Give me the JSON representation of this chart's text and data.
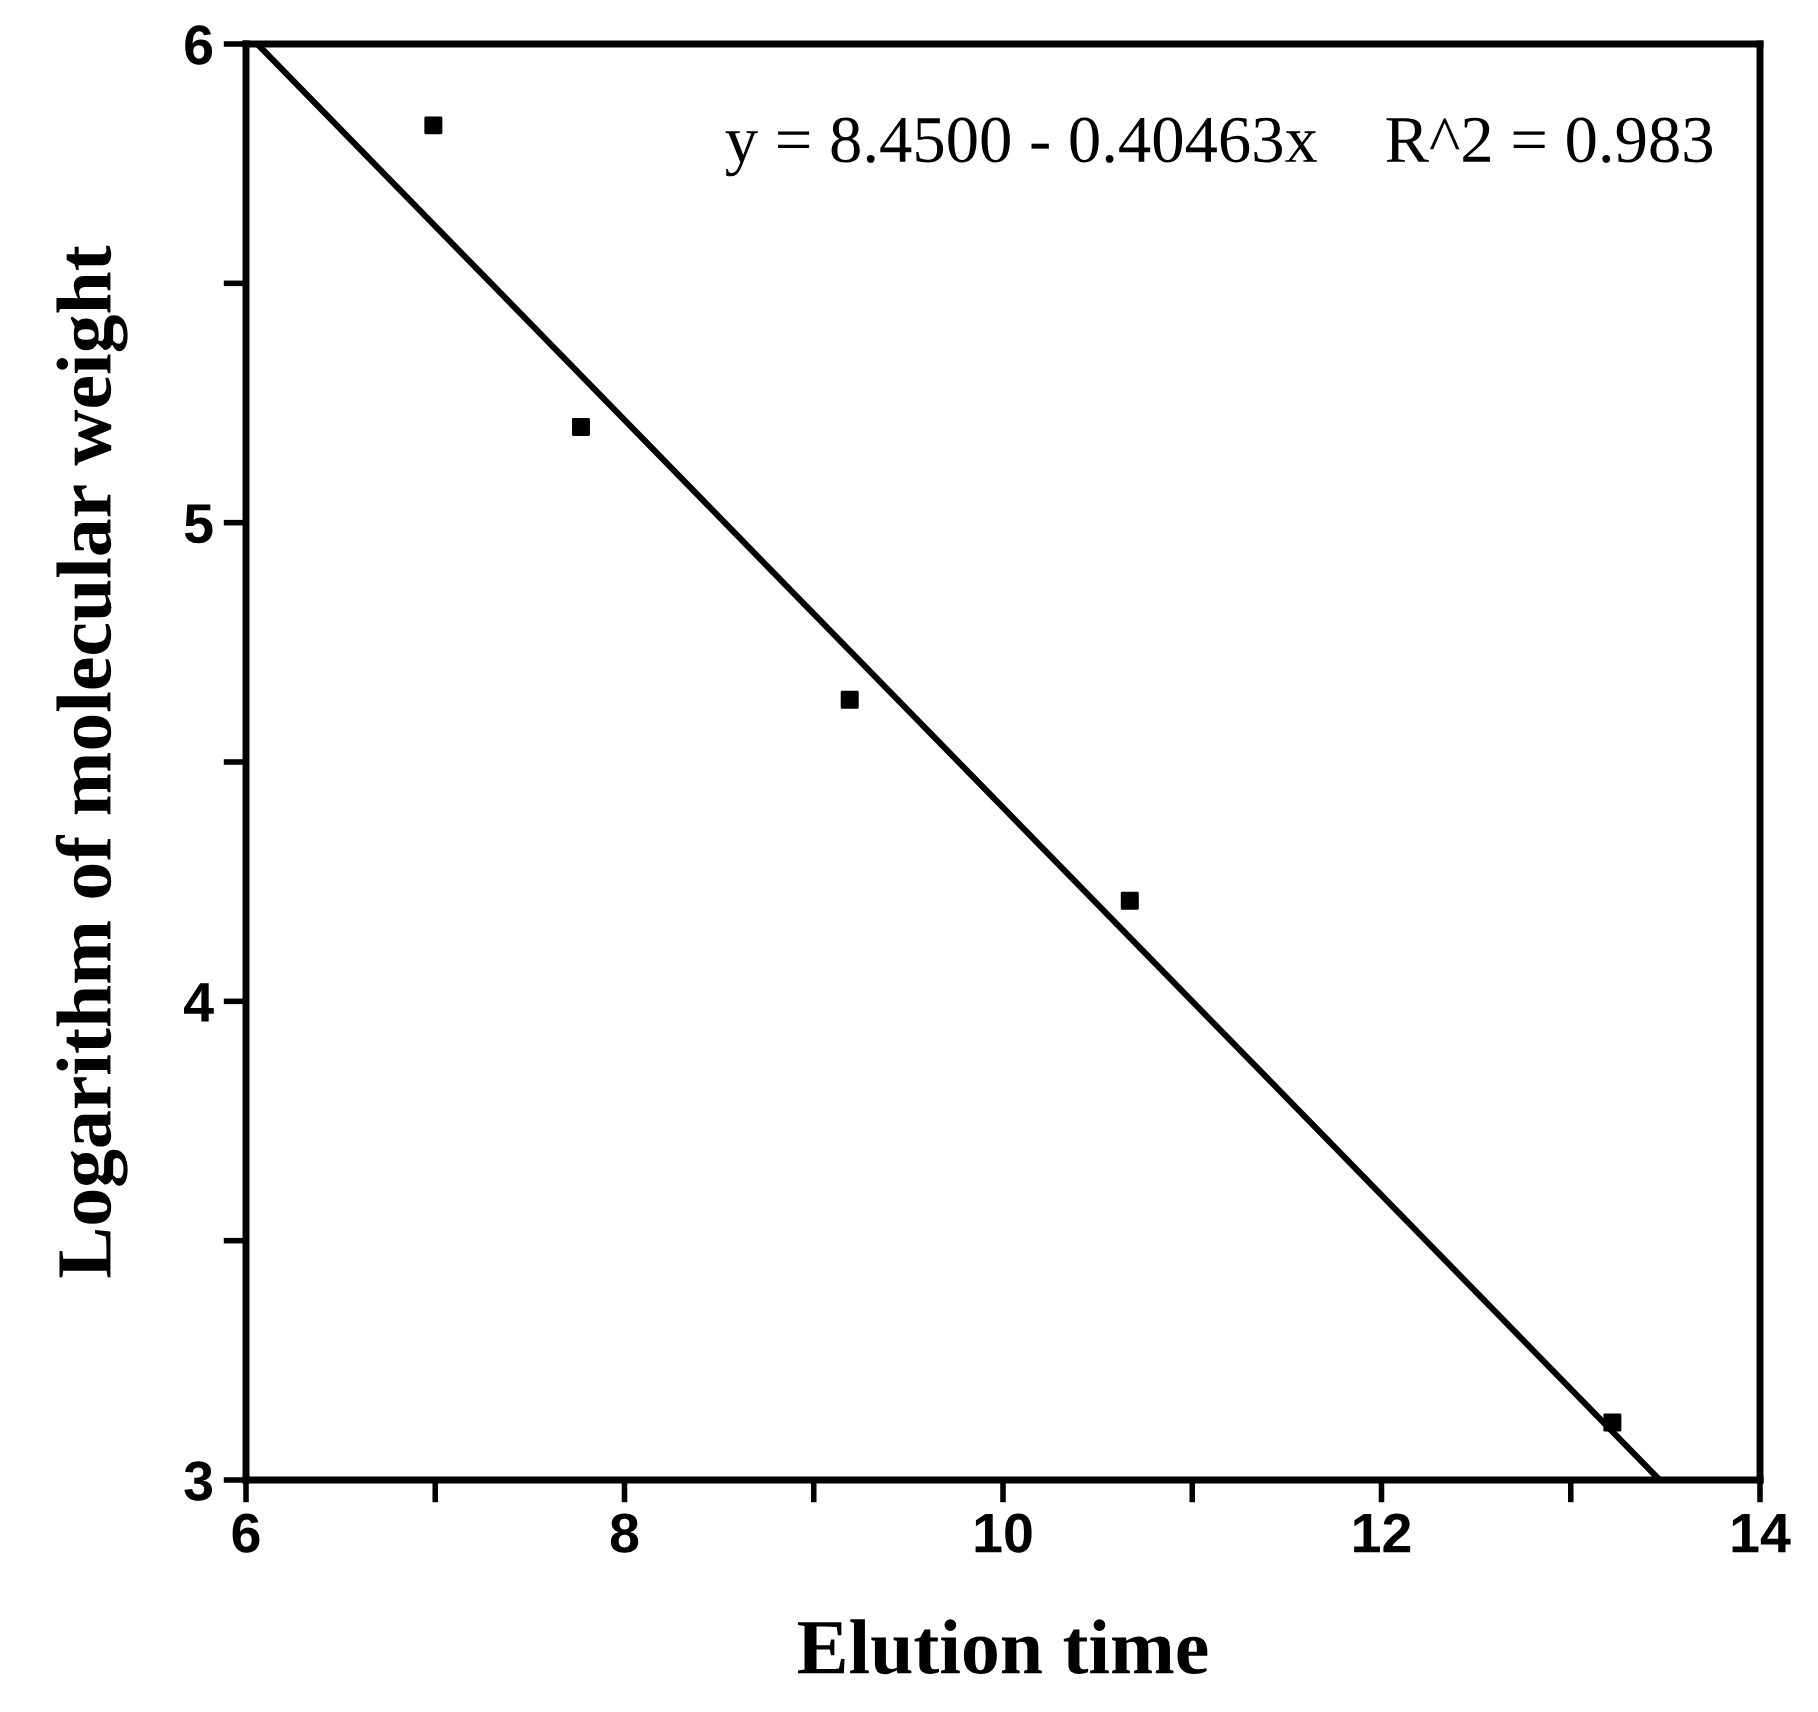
{
  "chart_data": {
    "type": "scatter",
    "xlabel": "Elution time",
    "ylabel": "Logarithm of molecular weight",
    "annotations": [
      "y = 8.4500 - 0.40463x    R^2 = 0.983"
    ],
    "series": [
      {
        "color": "#000000",
        "marker": "square",
        "x": [
          6.99,
          7.77,
          9.19,
          10.67,
          13.22
        ],
        "values": [
          5.83,
          5.2,
          4.63,
          4.21,
          3.12
        ]
      },
      {
        "type": "line",
        "color": "#000000",
        "marker": "none",
        "line_style": "solid",
        "x": [
          6.06,
          13.47
        ],
        "values": [
          6.0,
          3.0
        ]
      }
    ],
    "xlim": [
      6,
      14
    ],
    "ylim": [
      3,
      6
    ],
    "xticks": [
      6,
      {
        "value": 7,
        "label": null
      },
      8,
      {
        "value": 9,
        "label": null
      },
      10,
      {
        "value": 11,
        "label": null
      },
      12,
      {
        "value": 13,
        "label": null
      },
      14
    ],
    "yticks": [
      3,
      {
        "value": 3.5,
        "label": null
      },
      4,
      {
        "value": 4.5,
        "label": null
      },
      5,
      {
        "value": 5.5,
        "label": null
      },
      6
    ],
    "grid": false
  }
}
